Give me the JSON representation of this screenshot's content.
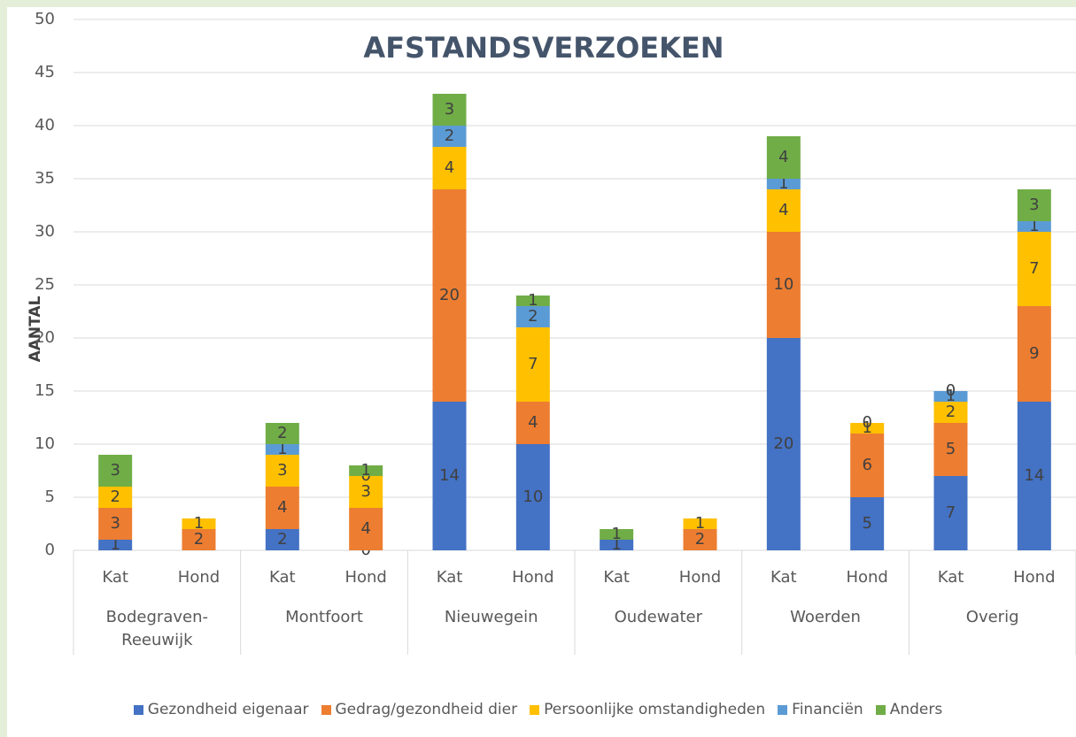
{
  "chart_data": {
    "type": "bar",
    "stacked": true,
    "title": "AFSTANDSVERZOEKEN",
    "y_label": "AANTAL",
    "categories": [
      "Kat",
      "Hond",
      "Kat",
      "Hond",
      "Kat",
      "Hond",
      "Kat",
      "Hond",
      "Kat",
      "Hond",
      "Kat",
      "Hond"
    ],
    "groups": [
      "Bodegraven-Reeuwijk",
      "Montfoort",
      "Nieuwegein",
      "Oudewater",
      "Woerden",
      "Overig"
    ],
    "series": [
      {
        "name": "Gezondheid eigenaar",
        "color": "#4472c4",
        "values": [
          1,
          null,
          2,
          0,
          14,
          10,
          1,
          null,
          20,
          5,
          7,
          14
        ]
      },
      {
        "name": "Gedrag/gezondheid dier",
        "color": "#ed7d31",
        "values": [
          3,
          2,
          4,
          4,
          20,
          4,
          null,
          2,
          10,
          6,
          5,
          9
        ]
      },
      {
        "name": "Persoonlijke omstandigheden",
        "color": "#ffc000",
        "values": [
          2,
          1,
          3,
          3,
          4,
          7,
          null,
          1,
          4,
          1,
          2,
          7
        ]
      },
      {
        "name": "Financiën",
        "color": "#5b9bd5",
        "values": [
          null,
          null,
          1,
          0,
          2,
          2,
          null,
          null,
          1,
          0,
          1,
          1
        ]
      },
      {
        "name": "Anders",
        "color": "#70ad47",
        "values": [
          3,
          null,
          2,
          1,
          3,
          1,
          1,
          null,
          4,
          null,
          0,
          3
        ]
      }
    ],
    "ylim": [
      0,
      50
    ],
    "yticks": [
      0,
      5,
      10,
      15,
      20,
      25,
      30,
      35,
      40,
      45,
      50
    ],
    "grid": true,
    "legend": "bottom"
  }
}
